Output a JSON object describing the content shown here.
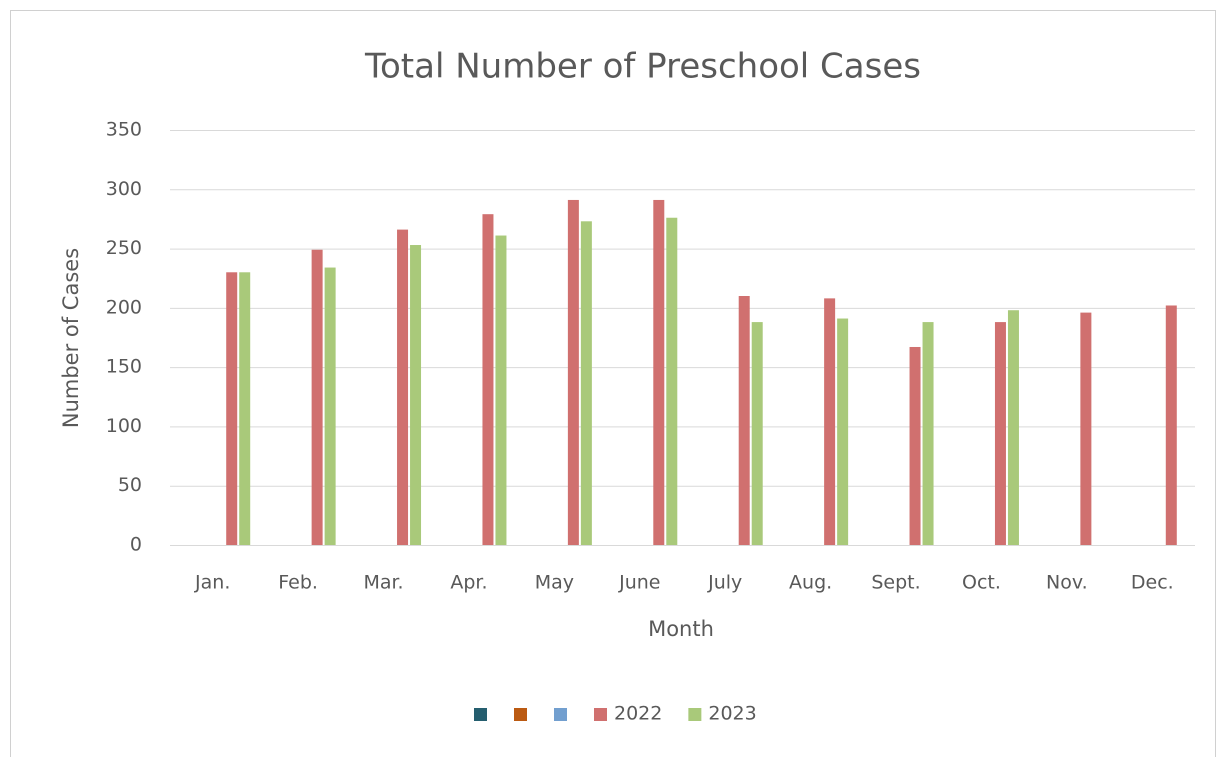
{
  "chart_data": {
    "type": "bar",
    "title": "Total Number of Preschool Cases",
    "x_label": "Month",
    "y_label": "Number of Cases",
    "categories": [
      "Jan.",
      "Feb.",
      "Mar.",
      "Apr.",
      "May",
      "June",
      "July",
      "Aug.",
      "Sept.",
      "Oct.",
      "Nov.",
      "Dec."
    ],
    "series": [
      {
        "name": null,
        "color": "#255e6f",
        "values": [
          null,
          null,
          null,
          null,
          null,
          null,
          null,
          null,
          null,
          null,
          null,
          null
        ]
      },
      {
        "name": null,
        "color": "#bb5a12",
        "values": [
          null,
          null,
          null,
          null,
          null,
          null,
          null,
          null,
          null,
          null,
          null,
          null
        ]
      },
      {
        "name": null,
        "color": "#729fcf",
        "values": [
          null,
          null,
          null,
          null,
          null,
          null,
          null,
          null,
          null,
          null,
          null,
          null
        ]
      },
      {
        "name": "2022",
        "color": "#d0706f",
        "values": [
          230,
          249,
          266,
          279,
          291,
          291,
          210,
          208,
          167,
          188,
          196,
          202
        ]
      },
      {
        "name": "2023",
        "color": "#a9c97a",
        "values": [
          230,
          234,
          253,
          261,
          273,
          276,
          188,
          191,
          188,
          198,
          null,
          null
        ]
      }
    ],
    "ylim": [
      0,
      350
    ],
    "yticks": [
      0,
      50,
      100,
      150,
      200,
      250,
      300,
      350
    ],
    "grid": true,
    "legend": "bottom"
  }
}
